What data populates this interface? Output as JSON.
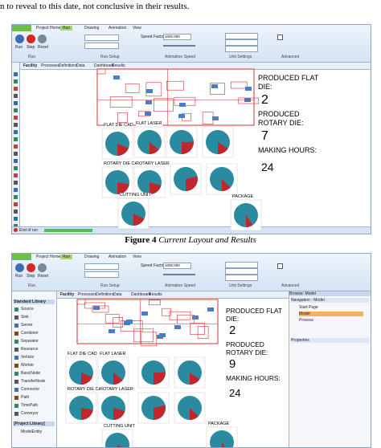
{
  "intro_text": "n to reveal to this date, not conclusive in their results.",
  "figure_caption": {
    "label": "Figure 4",
    "title": "Current Layout and Results"
  },
  "screenshots": [
    {
      "ribbon_tabs": [
        "Project Home",
        "Run",
        "Drawing",
        "Animation",
        "View"
      ],
      "run_controls": [
        "Run",
        "Step",
        "Reset"
      ],
      "speed_factor_label": "Speed Factor",
      "speed_factor": "1000.000",
      "ribbon_groups": [
        "Run",
        "Run Setup",
        "Animation Speed",
        "Unit Settings",
        "Advanced"
      ],
      "view_tabs": [
        "Facility",
        "Processes",
        "Definitions",
        "Data",
        "Dashboard",
        "Results"
      ],
      "dashboard": {
        "flat_label_1": "PRODUCED FLAT",
        "flat_label_2": "DIE:",
        "flat_value": 2,
        "rotary_label_1": "PRODUCED",
        "rotary_label_2": "ROTARY DIE:",
        "rotary_value": 7,
        "hours_label": "MAKING HOURS:",
        "hours_value": 24
      },
      "station_labels": [
        "FLAT DIE CAD",
        "FLAT LASER",
        "ROTARY DIE CAD",
        "ROTARY LASER",
        "CUTTING UNIT",
        "PACKAGE"
      ],
      "status": "End of run"
    },
    {
      "ribbon_tabs": [
        "Project Home",
        "Run",
        "Drawing",
        "Animation",
        "View"
      ],
      "run_controls": [
        "Run",
        "Step",
        "Reset"
      ],
      "speed_factor_label": "Speed Factor",
      "speed_factor": "1000.000",
      "ribbon_groups": [
        "Run",
        "Run Setup",
        "Animation Speed",
        "Unit Settings",
        "Advanced"
      ],
      "view_tabs": [
        "Facility",
        "Processes",
        "Definitions",
        "Data",
        "Dashboard",
        "Results"
      ],
      "dashboard": {
        "flat_label_1": "PRODUCED FLAT",
        "flat_label_2": "DIE:",
        "flat_value": 2,
        "rotary_label_1": "PRODUCED",
        "rotary_label_2": "ROTARY DIE:",
        "rotary_value": 9,
        "hours_label": "MAKING HOURS:",
        "hours_value": 24
      },
      "station_labels": [
        "FLAT DIE CAD",
        "FLAT LASER",
        "ROTARY DIE CAD",
        "ROTARY LASER",
        "CUTTING UNIT",
        "PACKAGE"
      ],
      "library_title": "Standard Library",
      "library_items": [
        "Source",
        "Sink",
        "Server",
        "Combiner",
        "Separator",
        "Resource",
        "Vehicle",
        "Worker",
        "BasicNode",
        "TransferNode",
        "Connector",
        "Path",
        "TimePath",
        "Conveyor"
      ],
      "project_library": "[Project Library]",
      "project_items": [
        "ModelEntity"
      ],
      "browse_title": "Browse: Model",
      "navigation": "Navigation - Model",
      "tree": [
        "Start Page",
        "Model",
        "Process"
      ],
      "properties": "Properties"
    }
  ]
}
